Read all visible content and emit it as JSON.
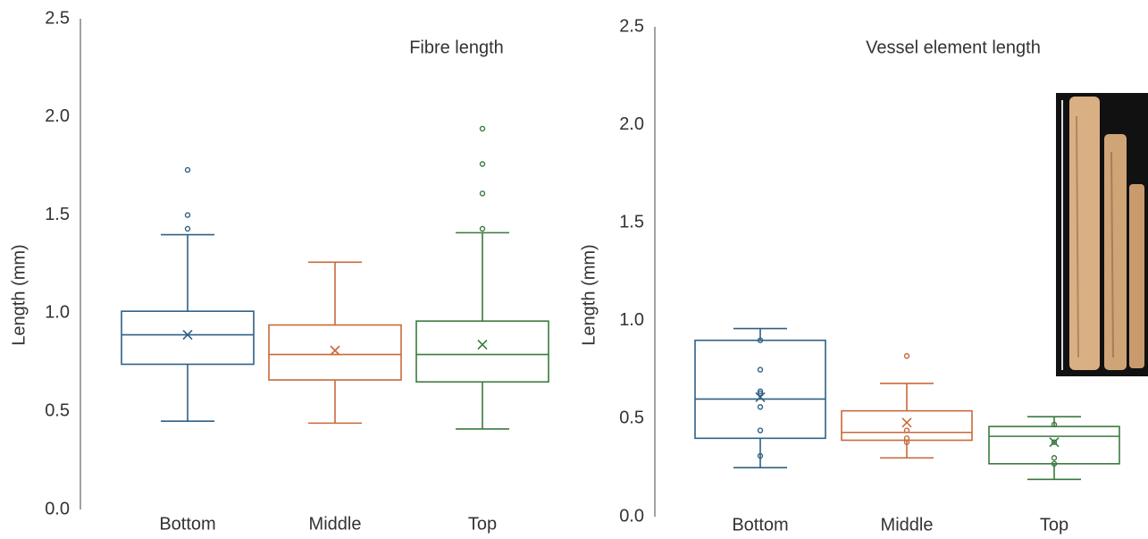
{
  "chart_data": [
    {
      "type": "box",
      "title": "Fibre length",
      "ylabel": "Length (mm)",
      "categories": [
        "Bottom",
        "Middle",
        "Top"
      ],
      "ylim": [
        0,
        2.5
      ],
      "yticks": [
        {
          "value": 0,
          "label": "0.0"
        },
        0.5,
        {
          "value": 1,
          "label": "1.0"
        },
        1.5,
        {
          "value": 2,
          "label": "2.0"
        },
        2.5
      ],
      "boxes": [
        {
          "color": "#2e6186",
          "whisker_low": 0.45,
          "q1": 0.74,
          "median": 0.89,
          "q3": 1.01,
          "whisker_high": 1.4,
          "mean": 0.89,
          "outliers": [
            1.43,
            1.5,
            1.73
          ],
          "points": []
        },
        {
          "color": "#c8693a",
          "whisker_low": 0.44,
          "q1": 0.66,
          "median": 0.79,
          "q3": 0.94,
          "whisker_high": 1.26,
          "mean": 0.81,
          "outliers": [],
          "points": []
        },
        {
          "color": "#3a7a3e",
          "whisker_low": 0.41,
          "q1": 0.65,
          "median": 0.79,
          "q3": 0.96,
          "whisker_high": 1.41,
          "mean": 0.84,
          "outliers": [
            1.43,
            1.61,
            1.76,
            1.94
          ],
          "points": []
        }
      ]
    },
    {
      "type": "box",
      "title": "Vessel element  length",
      "ylabel": "Length (mm)",
      "categories": [
        "Bottom",
        "Middle",
        "Top"
      ],
      "ylim": [
        0,
        2.5
      ],
      "yticks": [
        {
          "value": 0,
          "label": "0.0"
        },
        0.5,
        {
          "value": 1,
          "label": "1.0"
        },
        1.5,
        {
          "value": 2,
          "label": "2.0"
        },
        2.5
      ],
      "boxes": [
        {
          "color": "#2e6186",
          "whisker_low": 0.25,
          "q1": 0.4,
          "median": 0.6,
          "q3": 0.9,
          "whisker_high": 0.96,
          "mean": 0.61,
          "outliers": [],
          "points": [
            0.9,
            0.75,
            0.64,
            0.63,
            0.56,
            0.44,
            0.31
          ]
        },
        {
          "color": "#c8693a",
          "whisker_low": 0.3,
          "q1": 0.39,
          "median": 0.43,
          "q3": 0.54,
          "whisker_high": 0.68,
          "mean": 0.48,
          "outliers": [
            0.82
          ],
          "points": [
            0.44,
            0.4,
            0.38
          ]
        },
        {
          "color": "#3a7a3e",
          "whisker_low": 0.19,
          "q1": 0.27,
          "median": 0.41,
          "q3": 0.46,
          "whisker_high": 0.51,
          "mean": 0.38,
          "outliers": [],
          "points": [
            0.47,
            0.38,
            0.3,
            0.27
          ]
        }
      ]
    }
  ]
}
